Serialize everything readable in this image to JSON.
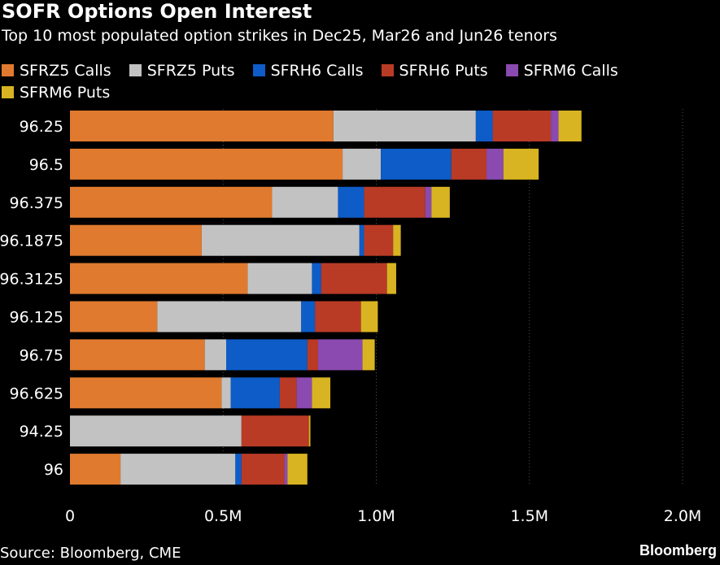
{
  "header": {
    "title": "SOFR Options Open Interest",
    "subtitle": "Top 10 most populated option strikes in Dec25, Mar26 and Jun26 tenors"
  },
  "footer": {
    "source": "Source: Bloomberg, CME",
    "brand": "Bloomberg"
  },
  "chart_data": {
    "type": "bar",
    "orientation": "horizontal",
    "stacked": true,
    "title": "SOFR Options Open Interest",
    "subtitle": "Top 10 most populated option strikes in Dec25, Mar26 and Jun26 tenors",
    "categories": [
      "96.25",
      "96.5",
      "96.375",
      "96.1875",
      "96.3125",
      "96.125",
      "96.75",
      "96.625",
      "94.25",
      "96"
    ],
    "xlim": [
      0,
      2000000
    ],
    "x_ticks": [
      0,
      500000,
      1000000,
      1500000,
      2000000
    ],
    "x_tick_labels": [
      "0",
      "0.5M",
      "1.0M",
      "1.5M",
      "2.0M"
    ],
    "legend_position": "top",
    "grid": "vertical",
    "series": [
      {
        "name": "SFRZ5 Calls",
        "color": "#e07a2e",
        "values": [
          860000,
          890000,
          660000,
          430000,
          580000,
          285000,
          440000,
          495000,
          0,
          165000
        ]
      },
      {
        "name": "SFRZ5 Puts",
        "color": "#c2c2c2",
        "values": [
          465000,
          125000,
          215000,
          515000,
          210000,
          470000,
          70000,
          30000,
          560000,
          375000
        ]
      },
      {
        "name": "SFRH6 Calls",
        "color": "#0d5cc8",
        "values": [
          55000,
          230000,
          85000,
          15000,
          30000,
          45000,
          265000,
          160000,
          0,
          20000
        ]
      },
      {
        "name": "SFRH6 Puts",
        "color": "#b93b26",
        "values": [
          190000,
          115000,
          200000,
          95000,
          215000,
          150000,
          35000,
          55000,
          220000,
          140000
        ]
      },
      {
        "name": "SFRM6 Calls",
        "color": "#8a4ab0",
        "values": [
          25000,
          55000,
          20000,
          0,
          0,
          0,
          145000,
          50000,
          0,
          10000
        ]
      },
      {
        "name": "SFRM6 Puts",
        "color": "#d8b422",
        "values": [
          75000,
          115000,
          60000,
          25000,
          30000,
          55000,
          40000,
          60000,
          5000,
          65000
        ]
      }
    ]
  }
}
